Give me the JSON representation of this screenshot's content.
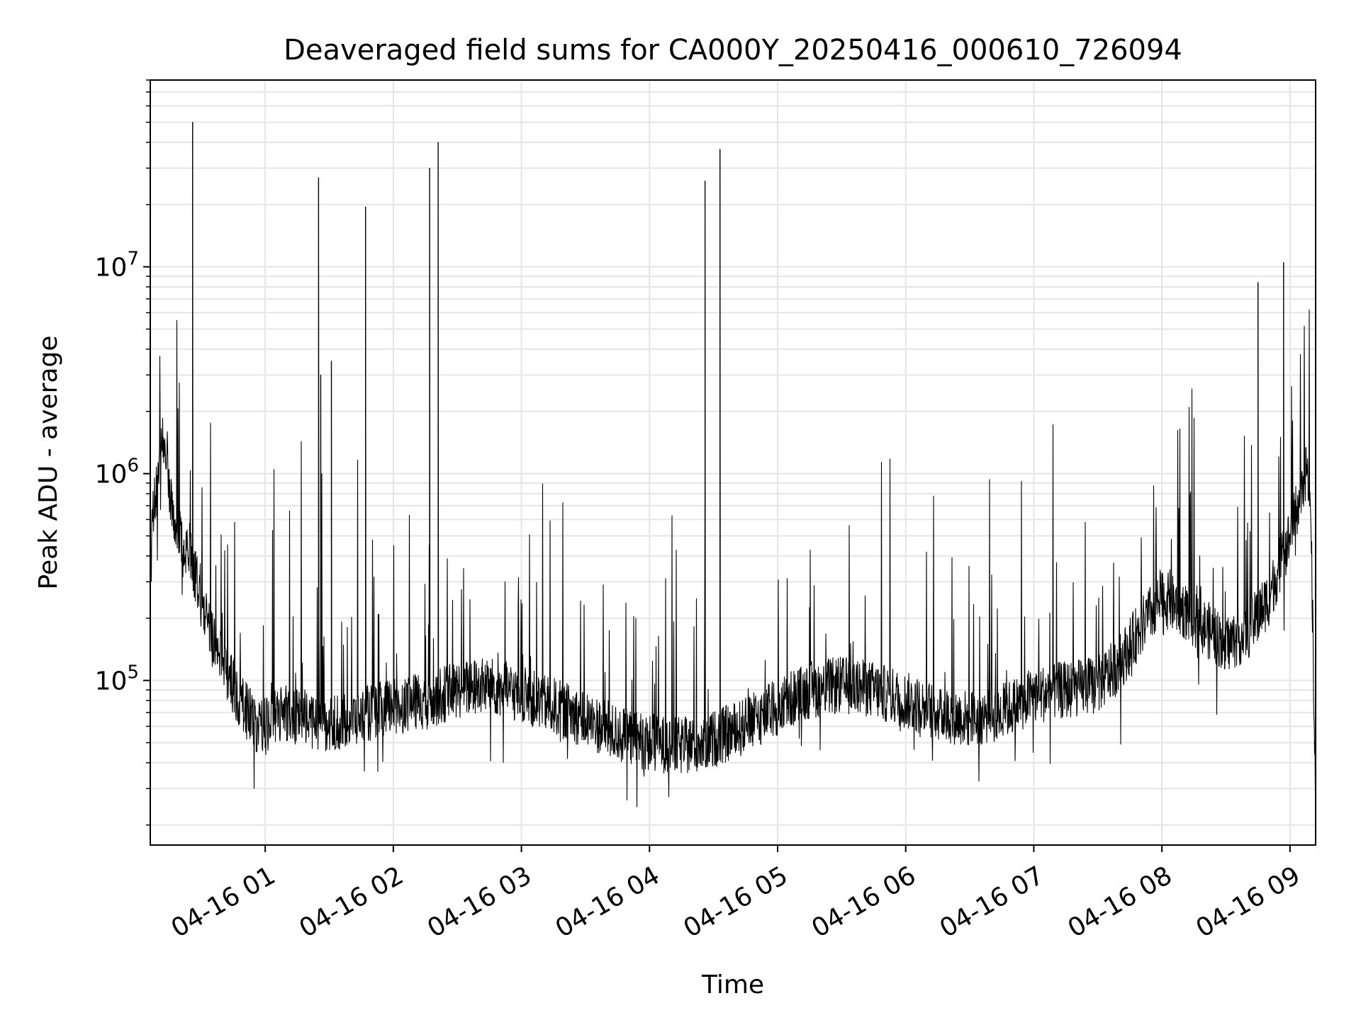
{
  "chart_data": {
    "type": "line",
    "title": "Deaveraged field sums for CA000Y_20250416_000610_726094",
    "xlabel": "Time",
    "ylabel": "Peak ADU - average",
    "x_axis": {
      "type": "datetime",
      "range": [
        "2025-04-16 00:06:10",
        "2025-04-16 09:12:00"
      ],
      "ticks": [
        "2025-04-16 01:00",
        "2025-04-16 02:00",
        "2025-04-16 03:00",
        "2025-04-16 04:00",
        "2025-04-16 05:00",
        "2025-04-16 06:00",
        "2025-04-16 07:00",
        "2025-04-16 08:00",
        "2025-04-16 09:00"
      ],
      "tick_labels": [
        "04-16 01",
        "04-16 02",
        "04-16 03",
        "04-16 04",
        "04-16 05",
        "04-16 06",
        "04-16 07",
        "04-16 08",
        "04-16 09"
      ],
      "tick_label_rotation_deg": 30
    },
    "y_axis": {
      "scale": "log",
      "ylim": [
        16000,
        80000000
      ],
      "major_ticks": [
        100000,
        1000000,
        10000000
      ],
      "tick_labels": [
        {
          "base": "10",
          "exp": "5"
        },
        {
          "base": "10",
          "exp": "6"
        },
        {
          "base": "10",
          "exp": "7"
        }
      ]
    },
    "grid": true,
    "grid_minor": true,
    "legend": "none",
    "series": [
      {
        "color": "#000000",
        "x": [
          "2025-04-16 00:06",
          "2025-04-16 00:08",
          "2025-04-16 00:10",
          "2025-04-16 00:12",
          "2025-04-16 00:14",
          "2025-04-16 00:16",
          "2025-04-16 00:18",
          "2025-04-16 00:20",
          "2025-04-16 00:22",
          "2025-04-16 00:24",
          "2025-04-16 00:26",
          "2025-04-16 00:28",
          "2025-04-16 00:30",
          "2025-04-16 00:33",
          "2025-04-16 00:36",
          "2025-04-16 00:40",
          "2025-04-16 00:44",
          "2025-04-16 00:48",
          "2025-04-16 00:52",
          "2025-04-16 00:56",
          "2025-04-16 01:00",
          "2025-04-16 01:10",
          "2025-04-16 01:20",
          "2025-04-16 01:30",
          "2025-04-16 01:40",
          "2025-04-16 01:50",
          "2025-04-16 02:00",
          "2025-04-16 02:15",
          "2025-04-16 02:30",
          "2025-04-16 02:45",
          "2025-04-16 03:00",
          "2025-04-16 03:15",
          "2025-04-16 03:30",
          "2025-04-16 03:45",
          "2025-04-16 04:00",
          "2025-04-16 04:15",
          "2025-04-16 04:30",
          "2025-04-16 04:45",
          "2025-04-16 05:00",
          "2025-04-16 05:15",
          "2025-04-16 05:30",
          "2025-04-16 05:45",
          "2025-04-16 06:00",
          "2025-04-16 06:15",
          "2025-04-16 06:30",
          "2025-04-16 06:45",
          "2025-04-16 07:00",
          "2025-04-16 07:15",
          "2025-04-16 07:30",
          "2025-04-16 07:40",
          "2025-04-16 07:50",
          "2025-04-16 08:00",
          "2025-04-16 08:10",
          "2025-04-16 08:20",
          "2025-04-16 08:30",
          "2025-04-16 08:40",
          "2025-04-16 08:50",
          "2025-04-16 09:00",
          "2025-04-16 09:05",
          "2025-04-16 09:08",
          "2025-04-16 09:10",
          "2025-04-16 09:12"
        ],
        "y": [
          400000,
          700000,
          900000,
          1600000,
          1200000,
          700000,
          600000,
          500000,
          400000,
          500000,
          350000,
          300000,
          250000,
          180000,
          150000,
          120000,
          100000,
          80000,
          70000,
          60000,
          60000,
          70000,
          65000,
          60000,
          65000,
          70000,
          75000,
          80000,
          90000,
          95000,
          85000,
          75000,
          65000,
          55000,
          50000,
          48000,
          52000,
          60000,
          75000,
          90000,
          95000,
          90000,
          80000,
          70000,
          65000,
          70000,
          85000,
          90000,
          95000,
          120000,
          180000,
          250000,
          220000,
          180000,
          150000,
          170000,
          250000,
          500000,
          800000,
          1100000,
          500000,
          25000
        ]
      }
    ],
    "spikes": [
      {
        "x": "2025-04-16 00:26",
        "y": 50000000
      },
      {
        "x": "2025-04-16 01:25",
        "y": 27000000
      },
      {
        "x": "2025-04-16 01:26",
        "y": 3000000
      },
      {
        "x": "2025-04-16 01:31",
        "y": 3500000
      },
      {
        "x": "2025-04-16 01:47",
        "y": 19500000
      },
      {
        "x": "2025-04-16 02:17",
        "y": 30000000
      },
      {
        "x": "2025-04-16 02:21",
        "y": 40000000
      },
      {
        "x": "2025-04-16 04:26",
        "y": 26000000
      },
      {
        "x": "2025-04-16 04:33",
        "y": 37000000
      },
      {
        "x": "2025-04-16 08:45",
        "y": 8400000
      },
      {
        "x": "2025-04-16 08:57",
        "y": 10500000
      }
    ]
  }
}
